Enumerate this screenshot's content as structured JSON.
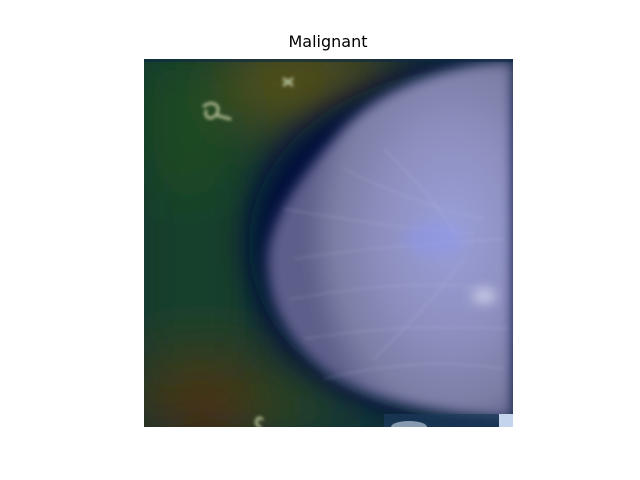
{
  "figure": {
    "title": "Malignant"
  },
  "image": {
    "description_icon": "mammogram-gradcam-overlay-icon",
    "colors": {
      "background_dark": "#05203a",
      "heat_green": "#1f4a22",
      "heat_olive": "#5a5a18",
      "heat_red": "#6e1f0e",
      "tissue": "#8e8fc0",
      "tissue_dark": "#09123d"
    }
  }
}
